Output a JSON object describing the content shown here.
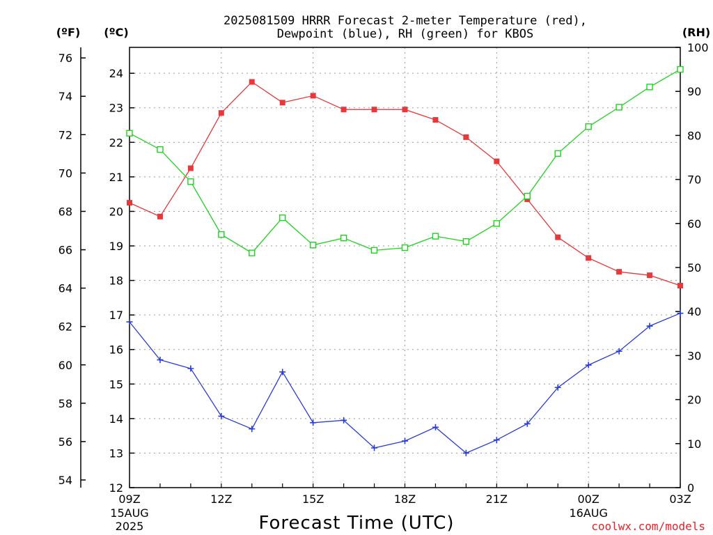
{
  "chart_data": {
    "type": "line",
    "title": [
      "2025081509 HRRR Forecast 2-meter Temperature (red),",
      "Dewpoint (blue), RH (green) for KBOS"
    ],
    "xlabel": "Forecast Time (UTC)",
    "left_outer_unit": "(ºF)",
    "left_inner_unit": "(ºC)",
    "right_unit": "(RH)",
    "credit": "coolwx.com/models",
    "x": [
      "09Z",
      "10Z",
      "11Z",
      "12Z",
      "13Z",
      "14Z",
      "15Z",
      "16Z",
      "17Z",
      "18Z",
      "19Z",
      "20Z",
      "21Z",
      "22Z",
      "23Z",
      "00Z",
      "01Z",
      "02Z",
      "03Z"
    ],
    "x_tick_labels": [
      {
        "label": "09Z",
        "sub": [
          "15AUG",
          "2025"
        ]
      },
      {
        "label": "12Z",
        "sub": []
      },
      {
        "label": "15Z",
        "sub": []
      },
      {
        "label": "18Z",
        "sub": []
      },
      {
        "label": "21Z",
        "sub": []
      },
      {
        "label": "00Z",
        "sub": [
          "16AUG"
        ]
      },
      {
        "label": "03Z",
        "sub": []
      }
    ],
    "y_celsius": {
      "range": [
        12,
        24.75
      ],
      "ticks": [
        "12",
        "13",
        "14",
        "15",
        "16",
        "17",
        "18",
        "19",
        "20",
        "21",
        "22",
        "23",
        "24"
      ]
    },
    "y_fahrenheit": {
      "ticks": [
        "54",
        "56",
        "58",
        "60",
        "62",
        "64",
        "66",
        "68",
        "70",
        "72",
        "74",
        "76"
      ]
    },
    "y_rh": {
      "range": [
        0,
        100
      ],
      "ticks": [
        "0",
        "10",
        "20",
        "30",
        "40",
        "50",
        "60",
        "70",
        "80",
        "90",
        "100"
      ]
    },
    "grid": true,
    "series": [
      {
        "name": "Temperature",
        "axis": "celsius",
        "color": "#e8383c",
        "marker": "filled-square",
        "values": [
          20.25,
          19.85,
          21.25,
          22.85,
          23.75,
          23.15,
          23.35,
          22.95,
          22.95,
          22.95,
          22.65,
          22.15,
          21.45,
          20.35,
          19.25,
          18.65,
          18.25,
          18.15,
          17.85
        ]
      },
      {
        "name": "Dewpoint",
        "axis": "celsius",
        "color": "#2a3bd8",
        "marker": "plus",
        "values": [
          16.8,
          15.7,
          15.45,
          14.07,
          13.7,
          15.35,
          13.88,
          13.95,
          13.15,
          13.35,
          13.75,
          13.0,
          13.38,
          13.85,
          14.9,
          15.55,
          15.95,
          16.68,
          17.05
        ]
      },
      {
        "name": "RH",
        "axis": "rh",
        "color": "#1fd21f",
        "marker": "open-square",
        "values": [
          80.5,
          76.8,
          69.5,
          57.5,
          53.3,
          61.3,
          55.1,
          56.7,
          53.9,
          54.5,
          57.1,
          55.9,
          60.0,
          66.2,
          75.9,
          82.0,
          86.4,
          91.0,
          95.0
        ]
      }
    ]
  }
}
